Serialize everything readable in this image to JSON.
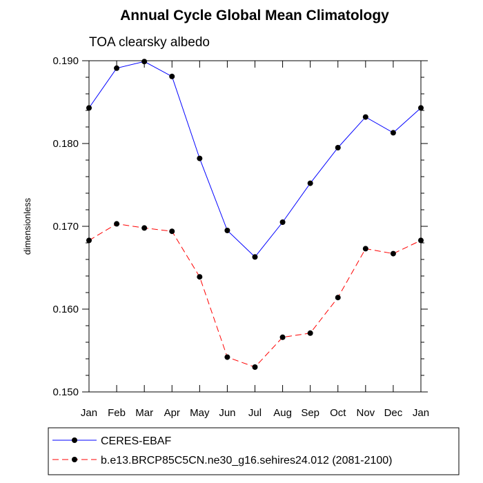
{
  "chart_data": {
    "type": "line",
    "title": "Annual Cycle Global Mean Climatology",
    "subtitle": "TOA clearsky albedo",
    "xlabel": "",
    "ylabel": "dimensionless",
    "categories": [
      "Jan",
      "Feb",
      "Mar",
      "Apr",
      "May",
      "Jun",
      "Jul",
      "Aug",
      "Sep",
      "Oct",
      "Nov",
      "Dec",
      "Jan"
    ],
    "ylim": [
      0.15,
      0.19
    ],
    "yticks": [
      "0.150",
      "0.160",
      "0.170",
      "0.180",
      "0.190"
    ],
    "grid": false,
    "legend_position": "bottom",
    "series": [
      {
        "name": "CERES-EBAF",
        "color": "#0000ff",
        "line_style": "solid",
        "marker": "filled-circle",
        "values": [
          0.1843,
          0.1891,
          0.1899,
          0.1881,
          0.1782,
          0.1695,
          0.1663,
          0.1705,
          0.1752,
          0.1795,
          0.1832,
          0.1813,
          0.1843
        ]
      },
      {
        "name": "b.e13.BRCP85C5CN.ne30_g16.sehires24.012 (2081-2100)",
        "color": "#ff0000",
        "line_style": "dashed",
        "marker": "filled-circle",
        "values": [
          0.1683,
          0.1703,
          0.1698,
          0.1694,
          0.1639,
          0.1542,
          0.153,
          0.1566,
          0.1571,
          0.1614,
          0.1673,
          0.1667,
          0.1683
        ]
      }
    ]
  }
}
